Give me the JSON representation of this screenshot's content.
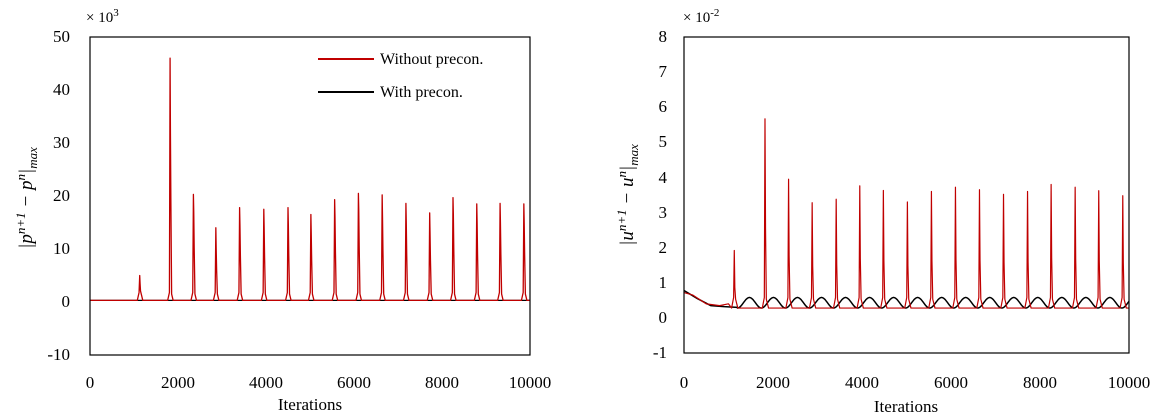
{
  "chart_data": [
    {
      "type": "line",
      "xlabel": "Iterations",
      "ylabel": "|p^{n+1} − p^n|_max",
      "ylabel_parts": [
        "|p",
        "n+1",
        " − p",
        "n",
        "|",
        "max"
      ],
      "multiplier": "× 10",
      "multiplier_exp": "3",
      "xlim": [
        0,
        10000
      ],
      "ylim": [
        -10,
        50
      ],
      "x_ticks": [
        "0",
        "2000",
        "4000",
        "6000",
        "8000",
        "10000"
      ],
      "y_ticks": [
        "50",
        "40",
        "30",
        "20",
        "10",
        "0",
        "-10"
      ],
      "grid": false,
      "legend_position": "top-right",
      "series": [
        {
          "name": "Without precon.",
          "color": "#c00000",
          "baseline": 0.3,
          "spikes": [
            {
              "x": 1130,
              "peak": 5.0,
              "shoulder": 3.5
            },
            {
              "x": 1820,
              "peak": 46.0,
              "shoulder": 32.0
            },
            {
              "x": 2350,
              "peak": 20.3,
              "shoulder": 17.0
            },
            {
              "x": 2860,
              "peak": 14.0,
              "shoulder": 10.0
            },
            {
              "x": 3400,
              "peak": 17.8,
              "shoulder": 14.5
            },
            {
              "x": 3950,
              "peak": 17.5,
              "shoulder": 14.0
            },
            {
              "x": 4500,
              "peak": 17.8,
              "shoulder": 14.5
            },
            {
              "x": 5020,
              "peak": 16.5,
              "shoulder": 13.0
            },
            {
              "x": 5560,
              "peak": 19.3,
              "shoulder": 16.0
            },
            {
              "x": 6100,
              "peak": 20.5,
              "shoulder": 17.5
            },
            {
              "x": 6640,
              "peak": 20.2,
              "shoulder": 16.0
            },
            {
              "x": 7180,
              "peak": 18.6,
              "shoulder": 15.0
            },
            {
              "x": 7720,
              "peak": 16.8,
              "shoulder": 13.0
            },
            {
              "x": 8250,
              "peak": 19.7,
              "shoulder": 16.5
            },
            {
              "x": 8790,
              "peak": 18.5,
              "shoulder": 15.0
            },
            {
              "x": 9320,
              "peak": 18.6,
              "shoulder": 15.0
            },
            {
              "x": 9860,
              "peak": 18.5,
              "shoulder": 15.0
            }
          ]
        },
        {
          "name": "With precon.",
          "color": "#000000",
          "baseline": 0.3,
          "spikes": []
        }
      ]
    },
    {
      "type": "line",
      "xlabel": "Iterations",
      "ylabel": "|u^{n+1} − u^n|_max",
      "ylabel_parts": [
        "|u",
        "n+1",
        " − u",
        "n",
        "|",
        "max"
      ],
      "multiplier": "× 10",
      "multiplier_exp": "-2",
      "xlim": [
        0,
        10000
      ],
      "ylim": [
        -1,
        8
      ],
      "x_ticks": [
        "0",
        "2000",
        "4000",
        "6000",
        "8000",
        "10000"
      ],
      "y_ticks": [
        "8",
        "7",
        "6",
        "5",
        "4",
        "3",
        "2",
        "1",
        "0",
        "-1"
      ],
      "grid": false,
      "series": [
        {
          "name": "Without precon.",
          "color": "#c00000",
          "baseline": 0.28,
          "initial": [
            [
              0,
              0.72
            ],
            [
              200,
              0.65
            ],
            [
              500,
              0.4
            ],
            [
              800,
              0.35
            ],
            [
              1000,
              0.4
            ]
          ],
          "spikes": [
            {
              "x": 1130,
              "peak": 1.92
            },
            {
              "x": 1820,
              "peak": 5.67
            },
            {
              "x": 2350,
              "peak": 3.95
            },
            {
              "x": 2880,
              "peak": 3.28
            },
            {
              "x": 3420,
              "peak": 3.38
            },
            {
              "x": 3950,
              "peak": 3.76
            },
            {
              "x": 4480,
              "peak": 3.63
            },
            {
              "x": 5020,
              "peak": 3.3
            },
            {
              "x": 5560,
              "peak": 3.6
            },
            {
              "x": 6100,
              "peak": 3.72
            },
            {
              "x": 6640,
              "peak": 3.65
            },
            {
              "x": 7180,
              "peak": 3.52
            },
            {
              "x": 7720,
              "peak": 3.6
            },
            {
              "x": 8250,
              "peak": 3.8
            },
            {
              "x": 8790,
              "peak": 3.72
            },
            {
              "x": 9320,
              "peak": 3.62
            },
            {
              "x": 9860,
              "peak": 3.48
            }
          ]
        },
        {
          "name": "With precon.",
          "color": "#000000",
          "initial": [
            [
              0,
              0.78
            ],
            [
              300,
              0.55
            ],
            [
              600,
              0.35
            ],
            [
              900,
              0.32
            ],
            [
              1200,
              0.3
            ]
          ],
          "oscillation": {
            "start": 1200,
            "period": 540,
            "low": 0.28,
            "high": 0.58
          }
        }
      ]
    }
  ]
}
